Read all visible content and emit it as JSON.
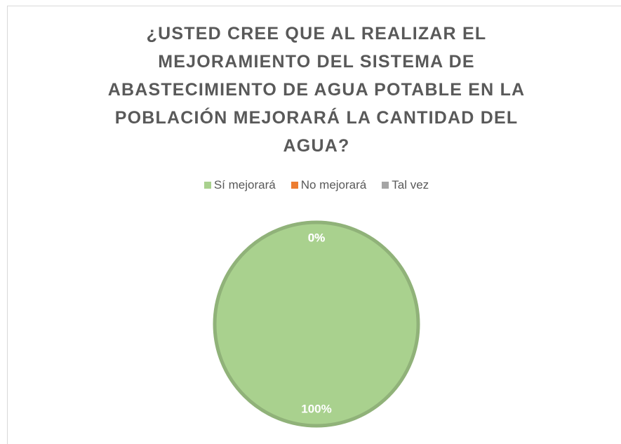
{
  "chart_data": {
    "type": "pie",
    "title": "¿USTED CREE QUE AL REALIZAR EL MEJORAMIENTO DEL SISTEMA DE ABASTECIMIENTO DE AGUA POTABLE EN LA POBLACIÓN MEJORARÁ LA CANTIDAD DEL AGUA?",
    "categories": [
      "Sí mejorará",
      "No mejorará",
      "Tal vez"
    ],
    "values": [
      100,
      0,
      0
    ],
    "value_labels": [
      "100%",
      "0%",
      "0%"
    ],
    "colors": [
      "#a9d18e",
      "#ed7d31",
      "#a5a5a5"
    ],
    "legend": "top"
  }
}
